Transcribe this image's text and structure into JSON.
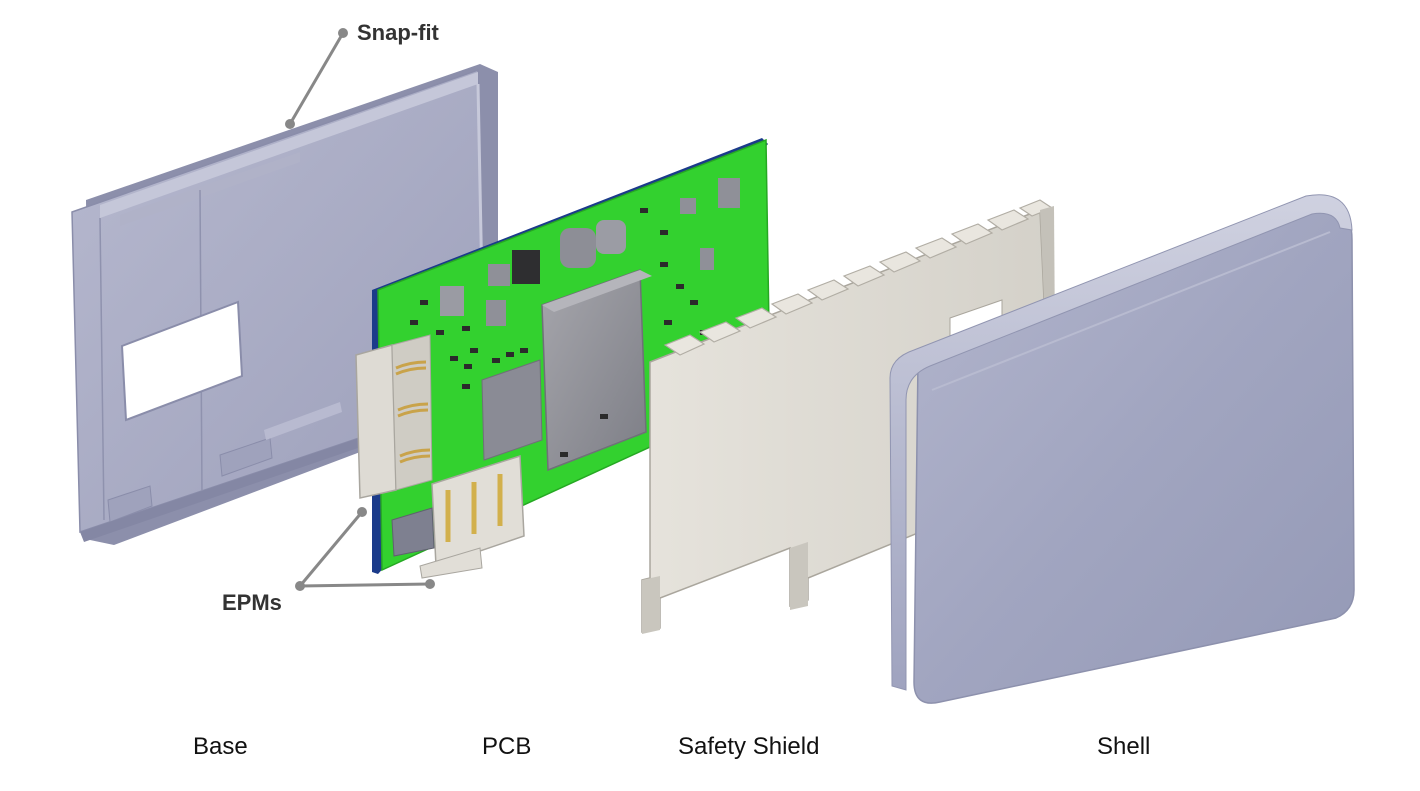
{
  "callouts": {
    "snap_fit": "Snap-fit",
    "epms": "EPMs"
  },
  "captions": {
    "base": "Base",
    "pcb": "PCB",
    "safety_shield": "Safety Shield",
    "shell": "Shell"
  },
  "colors": {
    "base": "#a9abc4",
    "pcb_green": "#33d12f",
    "shield": "#dcd9d2",
    "shell": "#a0a4c0",
    "leader": "#888888"
  }
}
